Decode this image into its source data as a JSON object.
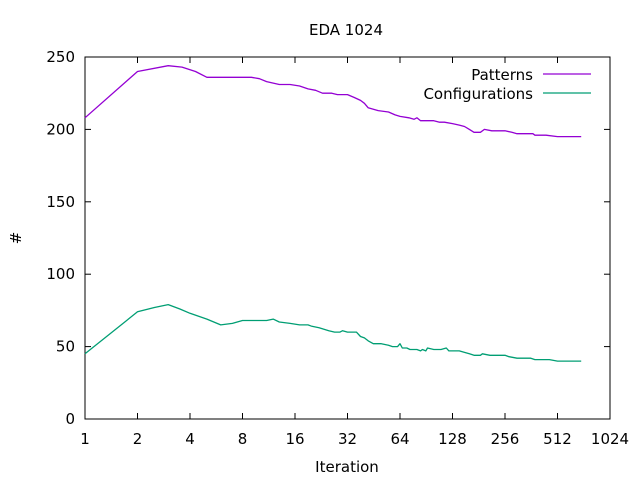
{
  "chart_data": {
    "type": "line",
    "title": "EDA 1024",
    "xlabel": "Iteration",
    "ylabel": "#",
    "xscale": "log2",
    "xlim": [
      1,
      1024
    ],
    "ylim": [
      0,
      250
    ],
    "xticks": [
      1,
      2,
      4,
      8,
      16,
      32,
      64,
      128,
      256,
      512,
      1024
    ],
    "yticks": [
      0,
      50,
      100,
      150,
      200,
      250
    ],
    "legend_position": "top-right",
    "grid": false,
    "series": [
      {
        "name": "Patterns",
        "color": "#9400d3",
        "points": [
          [
            1,
            208
          ],
          [
            2,
            240
          ],
          [
            3,
            244
          ],
          [
            3.6,
            243
          ],
          [
            4.3,
            240
          ],
          [
            5,
            236
          ],
          [
            6,
            236
          ],
          [
            8,
            236
          ],
          [
            9,
            236
          ],
          [
            10,
            235
          ],
          [
            11,
            233
          ],
          [
            13,
            231
          ],
          [
            15,
            231
          ],
          [
            17,
            230
          ],
          [
            19,
            228
          ],
          [
            21,
            227
          ],
          [
            23,
            225
          ],
          [
            26,
            225
          ],
          [
            28,
            224
          ],
          [
            32,
            224
          ],
          [
            35,
            222
          ],
          [
            38,
            220
          ],
          [
            40,
            218
          ],
          [
            42,
            215
          ],
          [
            48,
            213
          ],
          [
            55,
            212
          ],
          [
            60,
            210
          ],
          [
            64,
            209
          ],
          [
            72,
            208
          ],
          [
            77,
            207
          ],
          [
            80,
            208
          ],
          [
            84,
            206
          ],
          [
            100,
            206
          ],
          [
            108,
            205
          ],
          [
            115,
            205
          ],
          [
            128,
            204
          ],
          [
            140,
            203
          ],
          [
            150,
            202
          ],
          [
            160,
            200
          ],
          [
            170,
            198
          ],
          [
            185,
            198
          ],
          [
            195,
            200
          ],
          [
            215,
            199
          ],
          [
            256,
            199
          ],
          [
            280,
            198
          ],
          [
            300,
            197
          ],
          [
            370,
            197
          ],
          [
            380,
            196
          ],
          [
            440,
            196
          ],
          [
            512,
            195
          ],
          [
            700,
            195
          ]
        ]
      },
      {
        "name": "Configurations",
        "color": "#009e73",
        "points": [
          [
            1,
            45
          ],
          [
            2,
            74
          ],
          [
            2.5,
            77
          ],
          [
            3,
            79
          ],
          [
            3.5,
            76
          ],
          [
            4,
            73
          ],
          [
            5,
            69
          ],
          [
            6,
            65
          ],
          [
            7,
            66
          ],
          [
            8,
            68
          ],
          [
            10,
            68
          ],
          [
            11,
            68
          ],
          [
            12,
            69
          ],
          [
            13,
            67
          ],
          [
            15,
            66
          ],
          [
            17,
            65
          ],
          [
            19,
            65
          ],
          [
            20,
            64
          ],
          [
            22,
            63
          ],
          [
            25,
            61
          ],
          [
            27,
            60
          ],
          [
            29,
            60
          ],
          [
            30,
            61
          ],
          [
            32,
            60
          ],
          [
            36,
            60
          ],
          [
            38,
            57
          ],
          [
            40,
            56
          ],
          [
            42,
            54
          ],
          [
            45,
            52
          ],
          [
            50,
            52
          ],
          [
            55,
            51
          ],
          [
            58,
            50
          ],
          [
            62,
            50
          ],
          [
            64,
            52
          ],
          [
            66,
            49
          ],
          [
            70,
            49
          ],
          [
            73,
            48
          ],
          [
            80,
            48
          ],
          [
            84,
            47
          ],
          [
            86,
            48
          ],
          [
            90,
            47
          ],
          [
            92,
            49
          ],
          [
            100,
            48
          ],
          [
            110,
            48
          ],
          [
            118,
            49
          ],
          [
            122,
            47
          ],
          [
            130,
            47
          ],
          [
            140,
            47
          ],
          [
            150,
            46
          ],
          [
            160,
            45
          ],
          [
            170,
            44
          ],
          [
            185,
            44
          ],
          [
            190,
            45
          ],
          [
            210,
            44
          ],
          [
            256,
            44
          ],
          [
            270,
            43
          ],
          [
            300,
            42
          ],
          [
            360,
            42
          ],
          [
            380,
            41
          ],
          [
            460,
            41
          ],
          [
            512,
            40
          ],
          [
            700,
            40
          ]
        ]
      }
    ]
  }
}
